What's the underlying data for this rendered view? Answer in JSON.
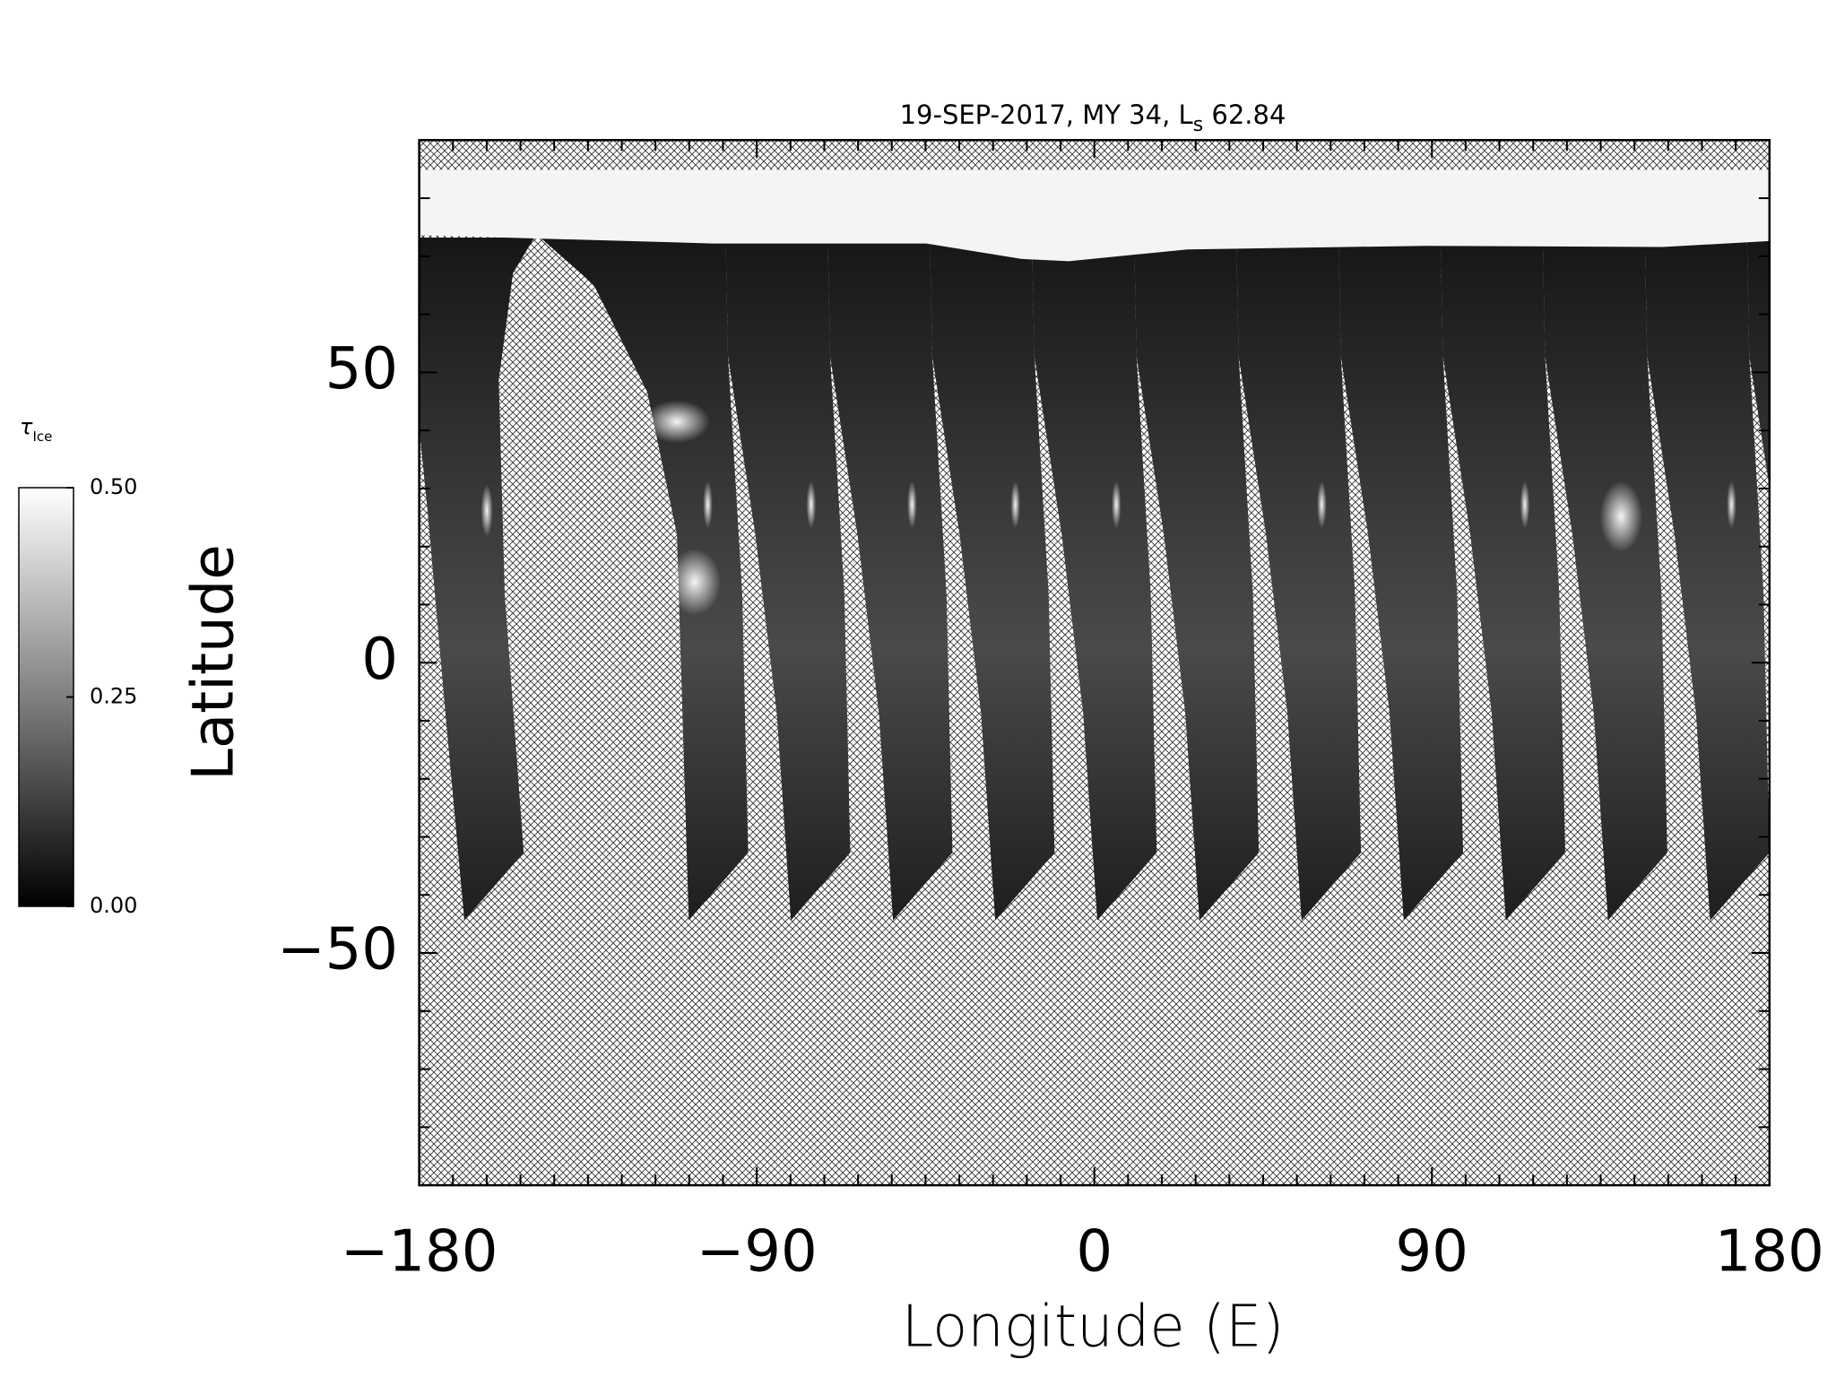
{
  "chart_data": {
    "type": "map",
    "title": {
      "main": "19-SEP-2017, MY 34,  L",
      "subscript": "s",
      "after": " 62.84"
    },
    "x_label": "Longitude (E)",
    "y_label": "Latitude",
    "xlim": [
      -180,
      180
    ],
    "xticks": [
      {
        "value": -180,
        "label": "−180"
      },
      {
        "value": -90,
        "label": "−90"
      },
      0,
      90,
      180
    ],
    "xminorticks": [
      -171,
      -162,
      -153,
      -144,
      -135,
      -126,
      -117,
      -108,
      -99,
      -81,
      -72,
      -63,
      -54,
      -45,
      -36,
      -27,
      -18,
      -9,
      9,
      18,
      27,
      36,
      45,
      54,
      63,
      72,
      81,
      99,
      108,
      117,
      126,
      135,
      144,
      153,
      162,
      171
    ],
    "ylim": [
      -90,
      90
    ],
    "yticks": [
      {
        "value": -50,
        "label": "−50"
      },
      0,
      50
    ],
    "yminorticks": [
      -80,
      -70,
      -60,
      -40,
      -30,
      -20,
      -10,
      10,
      20,
      30,
      40,
      60,
      70,
      80
    ],
    "colorbar": {
      "label": "τ",
      "label_subscript": "Ice",
      "lim": [
        0,
        0.5
      ],
      "ticks": [
        {
          "value": 0,
          "label": "0.00"
        },
        {
          "value": 0.25,
          "label": "0.25"
        },
        {
          "value": 0.5,
          "label": "0.50"
        }
      ],
      "colors": [
        "#000000",
        "#ffffff"
      ]
    }
  }
}
